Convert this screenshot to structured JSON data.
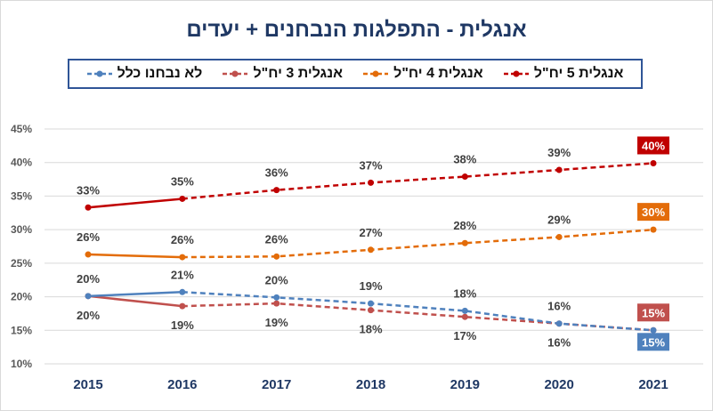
{
  "chart_data": {
    "type": "line",
    "title": "אנגלית - התפלגות הנבחנים + יעדים",
    "categories": [
      "2015",
      "2016",
      "2017",
      "2018",
      "2019",
      "2020",
      "2021"
    ],
    "y_ticks": [
      "10%",
      "15%",
      "20%",
      "25%",
      "30%",
      "35%",
      "40%",
      "45%"
    ],
    "ylim": [
      10,
      45
    ],
    "actual_until_index": 1,
    "series": [
      {
        "name": "אנגלית 5 יח\"ל",
        "color": "#c00000",
        "values": [
          33.3,
          34.6,
          35.9,
          37.0,
          37.9,
          38.9,
          39.9
        ],
        "labels": [
          "33%",
          "35%",
          "36%",
          "37%",
          "38%",
          "39%",
          "40%"
        ],
        "label_pos": [
          "above",
          "above",
          "above",
          "above",
          "above",
          "above",
          "box-above"
        ]
      },
      {
        "name": "אנגלית 4 יח\"ל",
        "color": "#e36c09",
        "values": [
          26.3,
          25.9,
          26.0,
          27.0,
          28.0,
          28.9,
          30.0
        ],
        "labels": [
          "26%",
          "26%",
          "26%",
          "27%",
          "28%",
          "29%",
          "30%"
        ],
        "label_pos": [
          "above",
          "above",
          "above",
          "above",
          "above",
          "above",
          "box-above"
        ]
      },
      {
        "name": "אנגלית 3 יח\"ל",
        "color": "#c0504d",
        "values": [
          20.1,
          18.6,
          19.0,
          18.0,
          17.0,
          16.0,
          15.0
        ],
        "labels": [
          "20%",
          "19%",
          "19%",
          "18%",
          "17%",
          "16%",
          "15%"
        ],
        "label_pos": [
          "below",
          "below",
          "below",
          "below",
          "below",
          "below",
          "box-above"
        ]
      },
      {
        "name": "לא נבחנו כלל",
        "color": "#4f81bd",
        "values": [
          20.1,
          20.7,
          19.9,
          19.0,
          17.9,
          16.0,
          15.0
        ],
        "labels": [
          "20%",
          "21%",
          "20%",
          "19%",
          "18%",
          "16%",
          "15%"
        ],
        "label_pos": [
          "above",
          "above",
          "above",
          "above",
          "above",
          "above",
          "box-below"
        ]
      }
    ]
  }
}
